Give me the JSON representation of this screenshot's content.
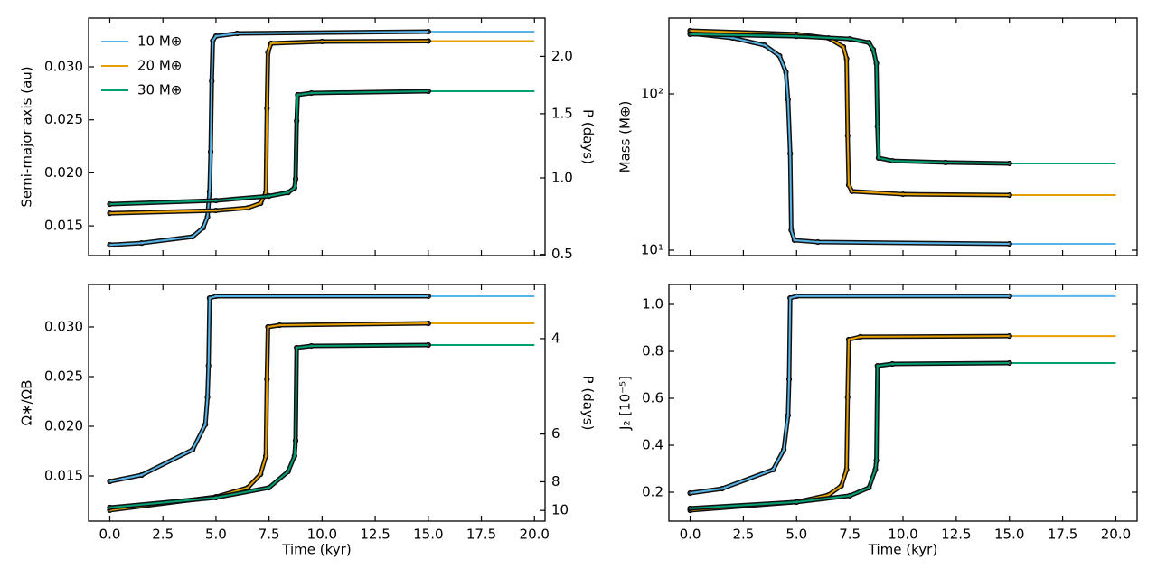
{
  "chart_data": [
    {
      "type": "line",
      "ylabel": "Semi-major axis (au)",
      "y2label": "P (days)",
      "xlim": [
        -1,
        20.5
      ],
      "xticks": [
        0,
        2.5,
        5,
        7.5,
        10,
        12.5,
        15,
        17.5,
        20
      ],
      "ylim": [
        0.0122,
        0.0346
      ],
      "yticks": [
        {
          "value": 0.015,
          "label": "0.015"
        },
        {
          "value": 0.02,
          "label": "0.020"
        },
        {
          "value": 0.025,
          "label": "0.025"
        },
        {
          "value": 0.03,
          "label": "0.030"
        }
      ],
      "y2scale": "kepler",
      "y2lim": [
        0.4935,
        2.36
      ],
      "y2ticks": [
        0.5,
        {
          "value": 1,
          "label": "1.0"
        },
        1.5,
        {
          "value": 2,
          "label": "2.0"
        }
      ],
      "legend": "upper left",
      "series": [
        {
          "name": "10 M⊕",
          "color": "#56b4e9",
          "x": [
            0,
            1.5,
            3.9,
            4.4,
            4.6,
            4.7,
            4.75,
            4.8,
            4.85,
            5,
            6,
            15
          ],
          "values": [
            0.01321,
            0.01338,
            0.01398,
            0.01483,
            0.01585,
            0.01824,
            0.02199,
            0.02864,
            0.03247,
            0.0329,
            0.03315,
            0.03332
          ],
          "ext_x": [
            15,
            20
          ],
          "ext_values": [
            0.03332,
            0.03332
          ]
        },
        {
          "name": "20 M⊕",
          "color": "#e69f00",
          "x": [
            0,
            5,
            6.5,
            7.1,
            7.35,
            7.4,
            7.45,
            7.6,
            10,
            15
          ],
          "values": [
            0.01619,
            0.01645,
            0.0167,
            0.01713,
            0.01815,
            0.02608,
            0.03136,
            0.03222,
            0.03239,
            0.03243
          ],
          "ext_x": [
            15,
            20
          ],
          "ext_values": [
            0.03243,
            0.03243
          ]
        },
        {
          "name": "30 M⊕",
          "color": "#009e73",
          "x": [
            0,
            5,
            7.5,
            8.4,
            8.7,
            8.75,
            8.8,
            8.85,
            9.5,
            15
          ],
          "values": [
            0.01705,
            0.01739,
            0.01781,
            0.01815,
            0.01858,
            0.01943,
            0.02489,
            0.02736,
            0.02753,
            0.0277
          ],
          "ext_x": [
            15,
            20
          ],
          "ext_values": [
            0.0277,
            0.0277
          ]
        }
      ]
    },
    {
      "type": "line",
      "ylabel": "Mass (M⊕)",
      "yscale": "log",
      "xlim": [
        -1,
        21
      ],
      "xticks": [
        0,
        2.5,
        5,
        7.5,
        10,
        12.5,
        15,
        17.5,
        20
      ],
      "ylim": [
        9.23,
        305.9
      ],
      "yticks": [
        {
          "value": 10,
          "label": "10¹"
        },
        {
          "value": 100,
          "label": "10²"
        }
      ],
      "series": [
        {
          "color": "#56b4e9",
          "x": [
            0,
            2,
            3.5,
            4.2,
            4.5,
            4.6,
            4.7,
            4.75,
            4.9,
            6,
            15
          ],
          "values": [
            244,
            228,
            205,
            175,
            138,
            92,
            41.5,
            13.4,
            11.58,
            11.27,
            10.97
          ],
          "ext_x": [
            15,
            20
          ],
          "ext_values": [
            10.97,
            10.97
          ]
        },
        {
          "color": "#e69f00",
          "x": [
            0,
            5,
            6.5,
            7.2,
            7.35,
            7.4,
            7.45,
            7.6,
            10,
            15
          ],
          "values": [
            254,
            241,
            228,
            200,
            168,
            54,
            26.1,
            23.8,
            22.8,
            22.5
          ],
          "ext_x": [
            15,
            20
          ],
          "ext_values": [
            22.5,
            22.5
          ]
        },
        {
          "color": "#009e73",
          "x": [
            0,
            5,
            7.5,
            8.4,
            8.6,
            8.75,
            8.8,
            8.85,
            9.5,
            12,
            15
          ],
          "values": [
            241,
            234,
            225,
            213,
            192,
            157,
            62,
            38.9,
            37.3,
            36.4,
            35.9
          ],
          "ext_x": [
            15,
            20
          ],
          "ext_values": [
            35.9,
            35.9
          ]
        }
      ]
    },
    {
      "type": "line",
      "ylabel": "Ω∗/ΩB",
      "y2label": "P (days)",
      "xlabel": "Time (kyr)",
      "xlim": [
        -1,
        20.5
      ],
      "xticks": [
        {
          "value": 0,
          "label": "0.0"
        },
        2.5,
        {
          "value": 5,
          "label": "5.0"
        },
        7.5,
        {
          "value": 10,
          "label": "10.0"
        },
        12.5,
        {
          "value": 15,
          "label": "15.0"
        },
        17.5,
        {
          "value": 20,
          "label": "20.0"
        }
      ],
      "ylim": [
        0.010455,
        0.03427
      ],
      "yticks": [
        {
          "value": 0.015,
          "label": "0.015"
        },
        {
          "value": 0.02,
          "label": "0.020"
        },
        {
          "value": 0.025,
          "label": "0.025"
        },
        {
          "value": 0.03,
          "label": "0.030"
        }
      ],
      "y2scale": "reciprocal",
      "y2lim": [
        11.03,
        3.364
      ],
      "y2ticks": [
        4,
        6,
        8,
        10
      ],
      "series": [
        {
          "color": "#56b4e9",
          "x": [
            0,
            1.5,
            3.9,
            4.5,
            4.6,
            4.65,
            4.7,
            5,
            15
          ],
          "values": [
            0.01445,
            0.01509,
            0.01764,
            0.02018,
            0.02291,
            0.02609,
            0.0329,
            0.03309,
            0.03309
          ],
          "ext_x": [
            15,
            20
          ],
          "ext_values": [
            0.03309,
            0.03309
          ]
        },
        {
          "color": "#e69f00",
          "x": [
            0,
            5,
            6.5,
            7.1,
            7.35,
            7.4,
            7.45,
            8,
            15
          ],
          "values": [
            0.01155,
            0.0129,
            0.01382,
            0.01518,
            0.017,
            0.02473,
            0.03,
            0.03018,
            0.03036
          ],
          "ext_x": [
            15,
            20
          ],
          "ext_values": [
            0.03036,
            0.03036
          ]
        },
        {
          "color": "#009e73",
          "x": [
            0,
            5,
            7.5,
            8.4,
            8.7,
            8.75,
            8.8,
            9.5,
            15
          ],
          "values": [
            0.01182,
            0.01282,
            0.01382,
            0.01545,
            0.017,
            0.01855,
            0.02791,
            0.02809,
            0.02818
          ],
          "ext_x": [
            15,
            20
          ],
          "ext_values": [
            0.02818,
            0.02818
          ]
        }
      ]
    },
    {
      "type": "line",
      "ylabel": "J₂ [10⁻⁵]",
      "xlabel": "Time (kyr)",
      "xlim": [
        -1,
        21
      ],
      "xticks": [
        {
          "value": 0,
          "label": "0.0"
        },
        2.5,
        {
          "value": 5,
          "label": "5.0"
        },
        7.5,
        {
          "value": 10,
          "label": "10.0"
        },
        12.5,
        {
          "value": 15,
          "label": "15.0"
        },
        17.5,
        {
          "value": 20,
          "label": "20.0"
        }
      ],
      "ylim": [
        0.0769,
        1.0846
      ],
      "yticks": [
        0.2,
        0.4,
        0.6,
        0.8,
        {
          "value": 1,
          "label": "1.0"
        }
      ],
      "series": [
        {
          "color": "#56b4e9",
          "x": [
            0,
            1.5,
            3.9,
            4.4,
            4.6,
            4.65,
            4.7,
            5,
            15
          ],
          "values": [
            0.196,
            0.215,
            0.296,
            0.381,
            0.527,
            0.681,
            1.027,
            1.035,
            1.035
          ],
          "ext_x": [
            15,
            20
          ],
          "ext_values": [
            1.035,
            1.035
          ]
        },
        {
          "color": "#e69f00",
          "x": [
            0,
            5,
            6.5,
            7.1,
            7.35,
            7.4,
            7.45,
            8,
            15
          ],
          "values": [
            0.123,
            0.158,
            0.188,
            0.227,
            0.296,
            0.604,
            0.85,
            0.862,
            0.865
          ],
          "ext_x": [
            15,
            20
          ],
          "ext_values": [
            0.865,
            0.865
          ]
        },
        {
          "color": "#009e73",
          "x": [
            0,
            5,
            7.5,
            8.4,
            8.7,
            8.75,
            8.8,
            9.5,
            15
          ],
          "values": [
            0.131,
            0.158,
            0.185,
            0.219,
            0.296,
            0.335,
            0.738,
            0.746,
            0.75
          ],
          "ext_x": [
            15,
            20
          ],
          "ext_values": [
            0.75,
            0.75
          ]
        }
      ]
    }
  ]
}
